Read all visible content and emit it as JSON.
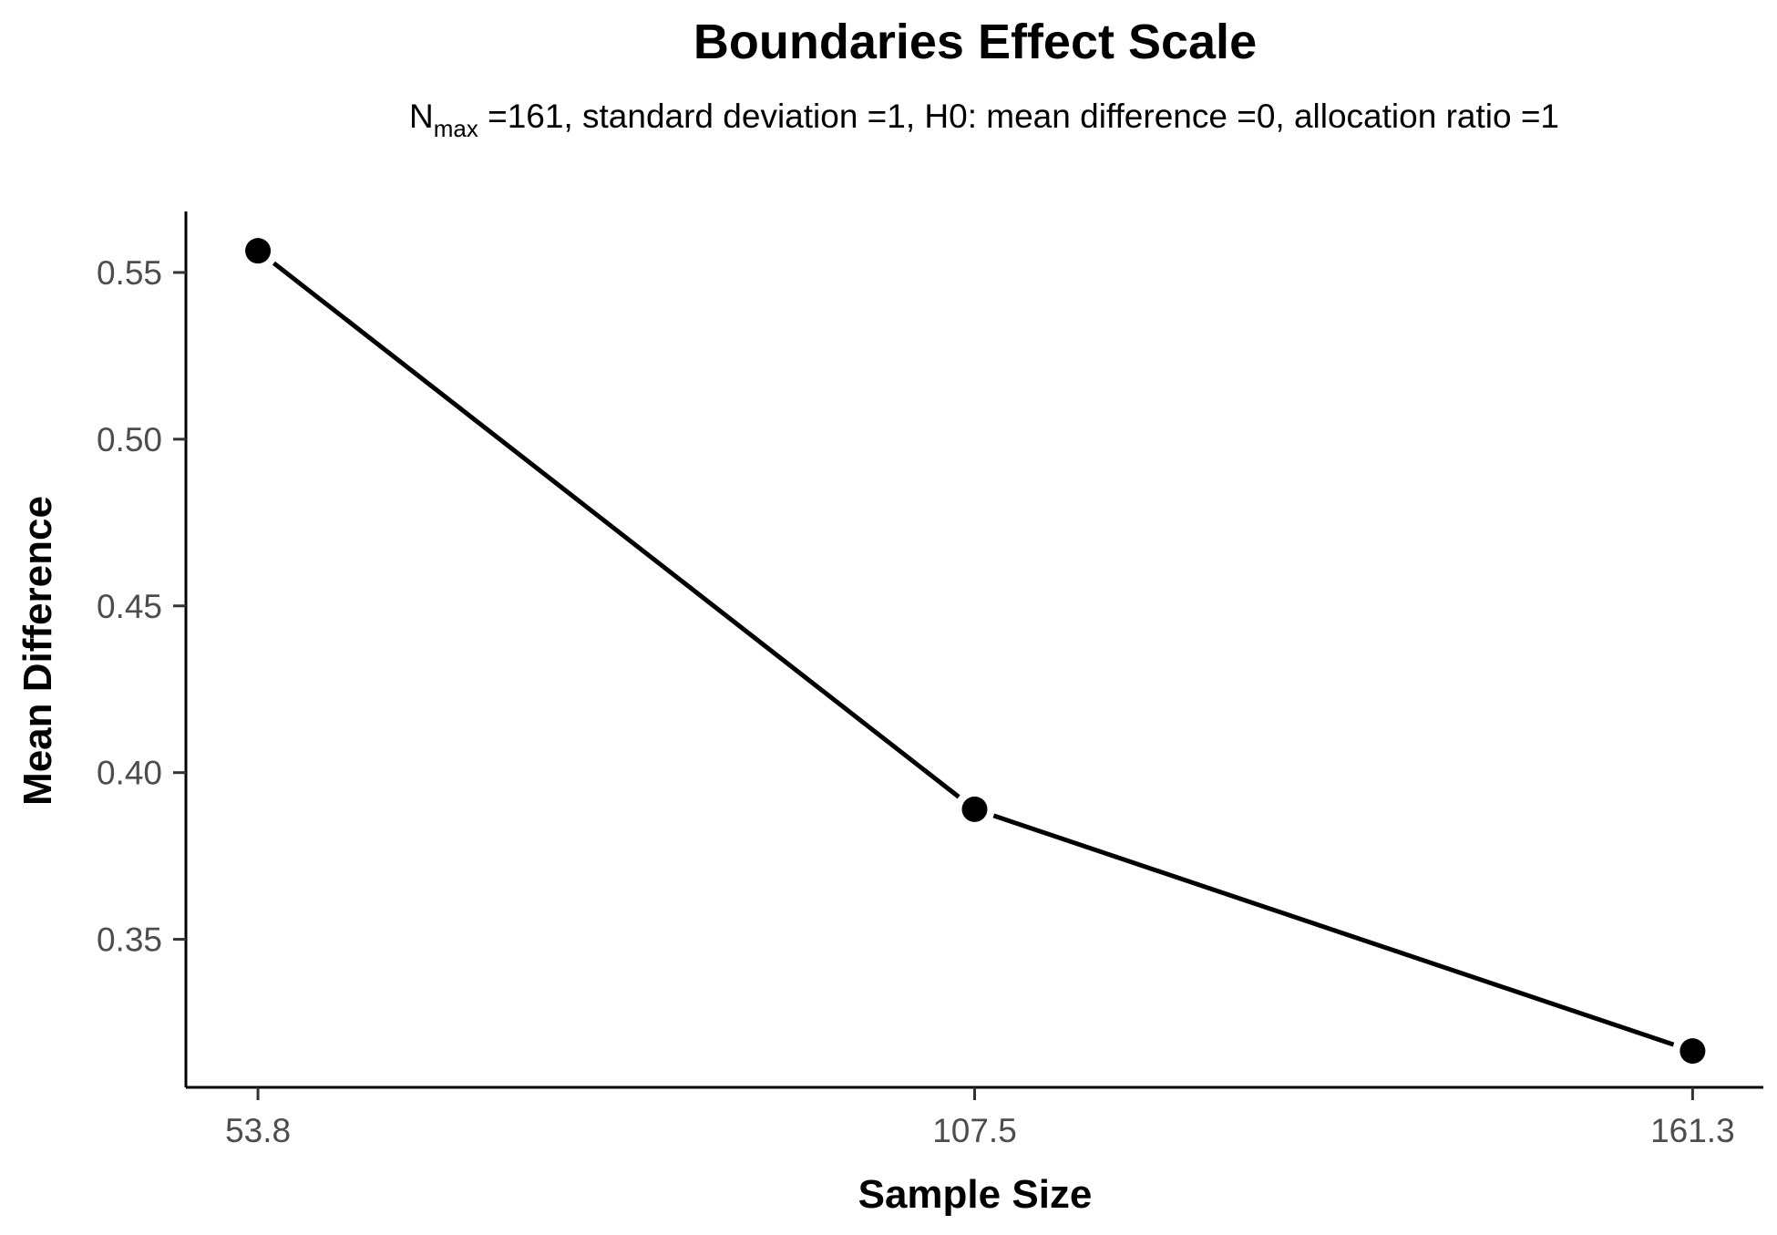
{
  "chart_data": {
    "type": "line",
    "title": "Boundaries Effect Scale",
    "subtitle": {
      "n_symbol": "N",
      "n_subscript": "max",
      "rest": " =161,  standard deviation =1,  H0: mean difference =0,  allocation ratio =1"
    },
    "xlabel": "Sample Size",
    "ylabel": "Mean Difference",
    "x": [
      53.8,
      107.5,
      161.3
    ],
    "x_tick_labels": [
      "53.8",
      "107.5",
      "161.3"
    ],
    "y_ticks": [
      0.35,
      0.4,
      0.45,
      0.5,
      0.55
    ],
    "y_tick_labels": [
      "0.35",
      "0.40",
      "0.45",
      "0.50",
      "0.55"
    ],
    "series": [
      {
        "values": [
          0.5565,
          0.389,
          0.3165
        ],
        "color": "#000000"
      }
    ],
    "xlim": [
      48.4,
      166.6
    ],
    "ylim": [
      0.3056,
      0.5683
    ],
    "grid": false,
    "legend": "none"
  }
}
